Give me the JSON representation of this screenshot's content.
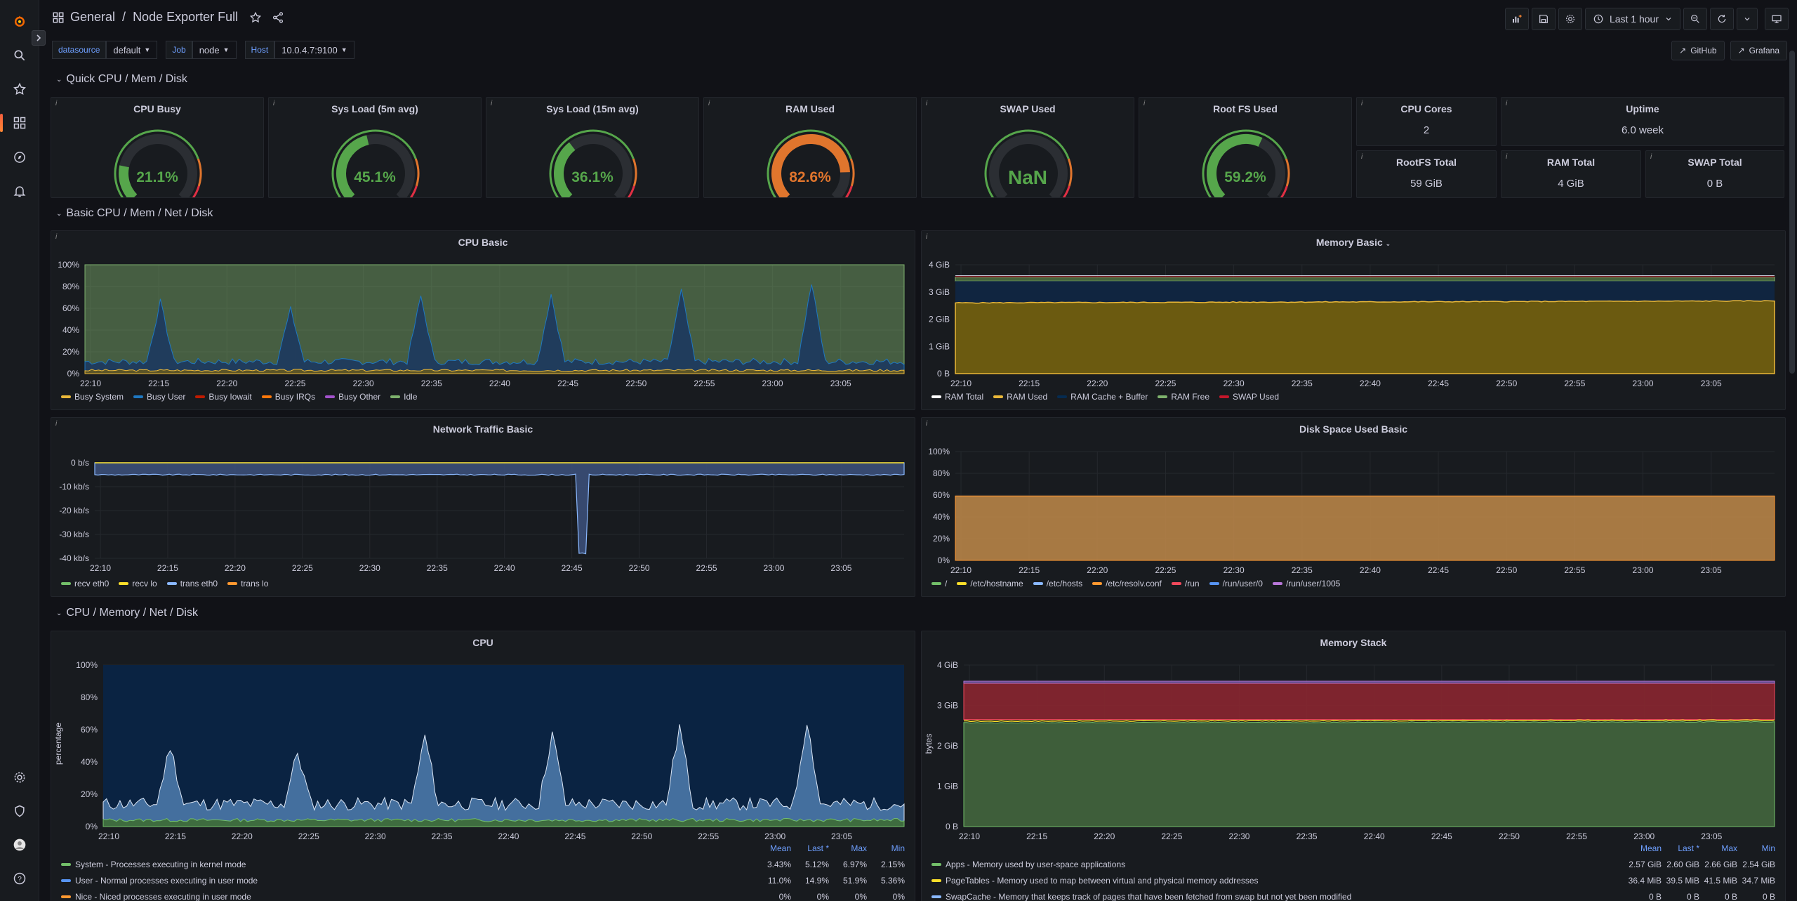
{
  "breadcrumb": {
    "folder": "General",
    "dashboard": "Node Exporter Full"
  },
  "toolbar": {
    "time_range": "Last 1 hour"
  },
  "variables": [
    {
      "label": "datasource",
      "value": "default"
    },
    {
      "label": "Job",
      "value": "node"
    },
    {
      "label": "Host",
      "value": "10.0.4.7:9100"
    }
  ],
  "links": [
    {
      "label": "GitHub"
    },
    {
      "label": "Grafana"
    }
  ],
  "rows": {
    "quick": "Quick CPU / Mem / Disk",
    "basic": "Basic CPU / Mem / Net / Disk",
    "detail": "CPU / Memory / Net / Disk"
  },
  "gauges": [
    {
      "title": "CPU Busy",
      "value": "21.1%",
      "fraction": 0.211,
      "color": "#56a64b"
    },
    {
      "title": "Sys Load (5m avg)",
      "value": "45.1%",
      "fraction": 0.451,
      "color": "#56a64b"
    },
    {
      "title": "Sys Load (15m avg)",
      "value": "36.1%",
      "fraction": 0.361,
      "color": "#56a64b"
    },
    {
      "title": "RAM Used",
      "value": "82.6%",
      "fraction": 0.826,
      "color": "#e0752d"
    },
    {
      "title": "SWAP Used",
      "value": "NaN",
      "fraction": 0,
      "color": "#56a64b"
    },
    {
      "title": "Root FS Used",
      "value": "59.2%",
      "fraction": 0.592,
      "color": "#56a64b"
    }
  ],
  "stats": [
    {
      "title": "CPU Cores",
      "value": "2"
    },
    {
      "title": "Uptime",
      "value": "6.0 week"
    },
    {
      "title": "RootFS Total",
      "value": "59 GiB"
    },
    {
      "title": "RAM Total",
      "value": "4 GiB"
    },
    {
      "title": "SWAP Total",
      "value": "0 B"
    }
  ],
  "time_ticks": [
    "22:10",
    "22:15",
    "22:20",
    "22:25",
    "22:30",
    "22:35",
    "22:40",
    "22:45",
    "22:50",
    "22:55",
    "23:00",
    "23:05"
  ],
  "cpu_basic": {
    "title": "CPU Basic",
    "y_ticks": [
      "100%",
      "80%",
      "60%",
      "40%",
      "20%",
      "0%"
    ],
    "legend": [
      {
        "name": "Busy System",
        "color": "#eab839"
      },
      {
        "name": "Busy User",
        "color": "#1f78c1"
      },
      {
        "name": "Busy Iowait",
        "color": "#bf1b00"
      },
      {
        "name": "Busy IRQs",
        "color": "#ff780a"
      },
      {
        "name": "Busy Other",
        "color": "#a352cc"
      },
      {
        "name": "Idle",
        "color": "#7eb26d"
      }
    ]
  },
  "memory_basic": {
    "title": "Memory Basic",
    "y_ticks": [
      "4 GiB",
      "3 GiB",
      "2 GiB",
      "1 GiB",
      "0 B"
    ],
    "legend": [
      {
        "name": "RAM Total",
        "color": "#ffffff"
      },
      {
        "name": "RAM Used",
        "color": "#eab839"
      },
      {
        "name": "RAM Cache + Buffer",
        "color": "#052b51"
      },
      {
        "name": "RAM Free",
        "color": "#7eb26d"
      },
      {
        "name": "SWAP Used",
        "color": "#c4162a"
      }
    ]
  },
  "network_basic": {
    "title": "Network Traffic Basic",
    "y_ticks": [
      "0 b/s",
      "-10 kb/s",
      "-20 kb/s",
      "-30 kb/s",
      "-40 kb/s"
    ],
    "legend": [
      {
        "name": "recv eth0",
        "color": "#73bf69"
      },
      {
        "name": "recv lo",
        "color": "#fade2a"
      },
      {
        "name": "trans eth0",
        "color": "#8ab8ff"
      },
      {
        "name": "trans lo",
        "color": "#ff9830"
      }
    ]
  },
  "disk_basic": {
    "title": "Disk Space Used Basic",
    "y_ticks": [
      "100%",
      "80%",
      "60%",
      "40%",
      "20%",
      "0%"
    ],
    "legend": [
      {
        "name": "/",
        "color": "#73bf69"
      },
      {
        "name": "/etc/hostname",
        "color": "#fade2a"
      },
      {
        "name": "/etc/hosts",
        "color": "#8ab8ff"
      },
      {
        "name": "/etc/resolv.conf",
        "color": "#ff9830"
      },
      {
        "name": "/run",
        "color": "#f2495c"
      },
      {
        "name": "/run/user/0",
        "color": "#5794f2"
      },
      {
        "name": "/run/user/1005",
        "color": "#b877d9"
      }
    ]
  },
  "cpu": {
    "title": "CPU",
    "ylabel": "percentage",
    "y_ticks": [
      "100%",
      "80%",
      "60%",
      "40%",
      "20%",
      "0%"
    ],
    "columns": [
      "Mean",
      "Last *",
      "Max",
      "Min"
    ],
    "legend": [
      {
        "name": "System - Processes executing in kernel mode",
        "color": "#73bf69",
        "mean": "3.43%",
        "last": "5.12%",
        "max": "6.97%",
        "min": "2.15%"
      },
      {
        "name": "User - Normal processes executing in user mode",
        "color": "#5794f2",
        "mean": "11.0%",
        "last": "14.9%",
        "max": "51.9%",
        "min": "5.36%"
      },
      {
        "name": "Nice - Niced processes executing in user mode",
        "color": "#ff9830",
        "mean": "0%",
        "last": "0%",
        "max": "0%",
        "min": "0%"
      }
    ]
  },
  "memory_stack": {
    "title": "Memory Stack",
    "ylabel": "bytes",
    "y_ticks": [
      "4 GiB",
      "3 GiB",
      "2 GiB",
      "1 GiB",
      "0 B"
    ],
    "columns": [
      "Mean",
      "Last *",
      "Max",
      "Min"
    ],
    "legend": [
      {
        "name": "Apps - Memory used by user-space applications",
        "color": "#73bf69",
        "mean": "2.57 GiB",
        "last": "2.60 GiB",
        "max": "2.66 GiB",
        "min": "2.54 GiB"
      },
      {
        "name": "PageTables - Memory used to map between virtual and physical memory addresses",
        "color": "#fade2a",
        "mean": "36.4 MiB",
        "last": "39.5 MiB",
        "max": "41.5 MiB",
        "min": "34.7 MiB"
      },
      {
        "name": "SwapCache - Memory that keeps track of pages that have been fetched from swap but not yet been modified",
        "color": "#8ab8ff",
        "mean": "0 B",
        "last": "0 B",
        "max": "0 B",
        "min": "0 B"
      }
    ]
  }
}
